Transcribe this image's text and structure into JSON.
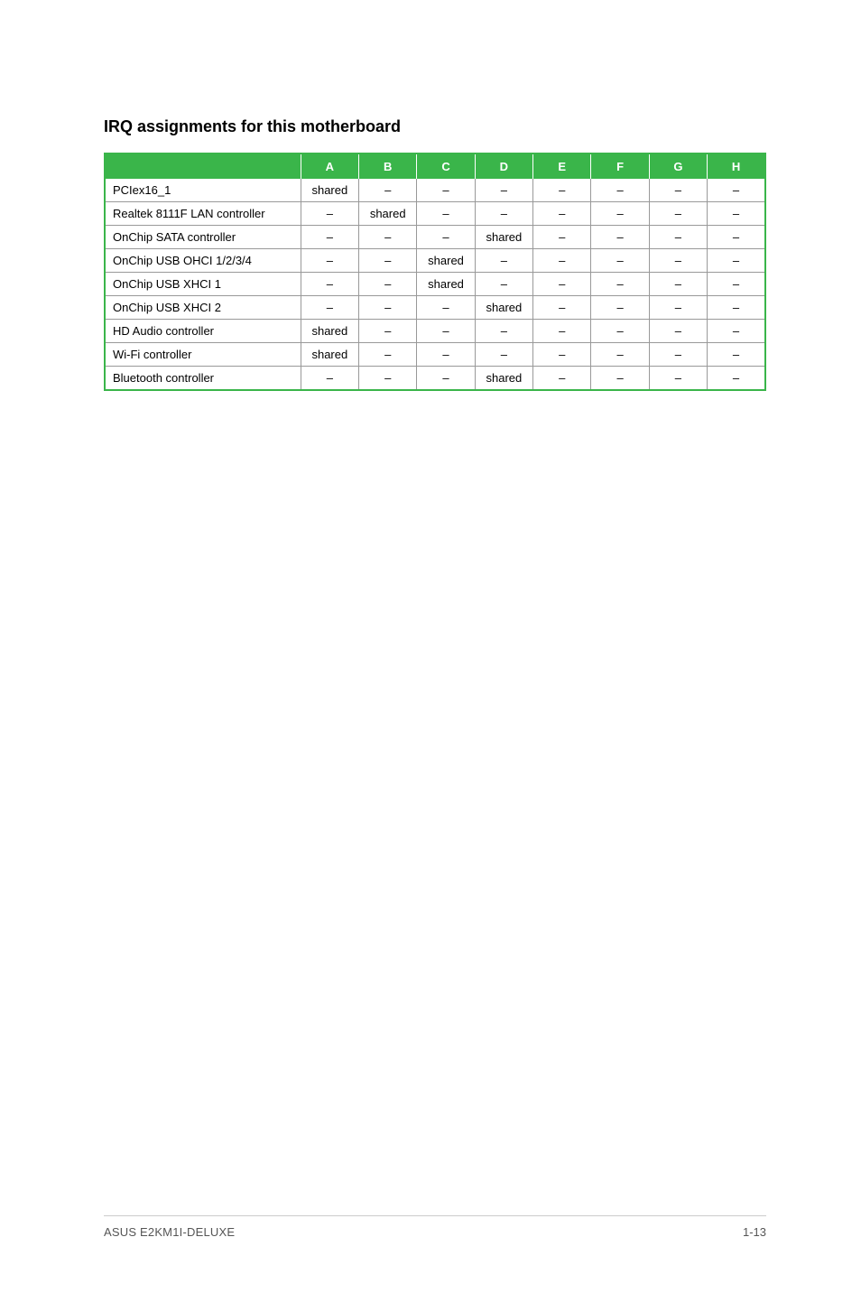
{
  "title": "IRQ assignments for this motherboard",
  "table": {
    "columns": [
      "",
      "A",
      "B",
      "C",
      "D",
      "E",
      "F",
      "G",
      "H"
    ],
    "rows": [
      {
        "label": "PCIex16_1",
        "cells": [
          "shared",
          "–",
          "–",
          "–",
          "–",
          "–",
          "–",
          "–"
        ]
      },
      {
        "label": "Realtek 8111F LAN controller",
        "cells": [
          "–",
          "shared",
          "–",
          "–",
          "–",
          "–",
          "–",
          "–"
        ]
      },
      {
        "label": "OnChip SATA controller",
        "cells": [
          "–",
          "–",
          "–",
          "shared",
          "–",
          "–",
          "–",
          "–"
        ]
      },
      {
        "label": "OnChip USB OHCI 1/2/3/4",
        "cells": [
          "–",
          "–",
          "shared",
          "–",
          "–",
          "–",
          "–",
          "–"
        ]
      },
      {
        "label": "OnChip USB XHCI 1",
        "cells": [
          "–",
          "–",
          "shared",
          "–",
          "–",
          "–",
          "–",
          "–"
        ]
      },
      {
        "label": "OnChip USB XHCI 2",
        "cells": [
          "–",
          "–",
          "–",
          "shared",
          "–",
          "–",
          "–",
          "–"
        ]
      },
      {
        "label": "HD Audio controller",
        "cells": [
          "shared",
          "–",
          "–",
          "–",
          "–",
          "–",
          "–",
          "–"
        ]
      },
      {
        "label": "Wi-Fi controller",
        "cells": [
          "shared",
          "–",
          "–",
          "–",
          "–",
          "–",
          "–",
          "–"
        ]
      },
      {
        "label": "Bluetooth controller",
        "cells": [
          "–",
          "–",
          "–",
          "shared",
          "–",
          "–",
          "–",
          "–"
        ]
      }
    ],
    "header_bg": "#3ab54a",
    "header_fg": "#ffffff",
    "border_color": "#3ab54a",
    "grid_color": "#999999",
    "font_size": 13
  },
  "footer": {
    "left": "ASUS E2KM1I-DELUXE",
    "right": "1-13"
  }
}
